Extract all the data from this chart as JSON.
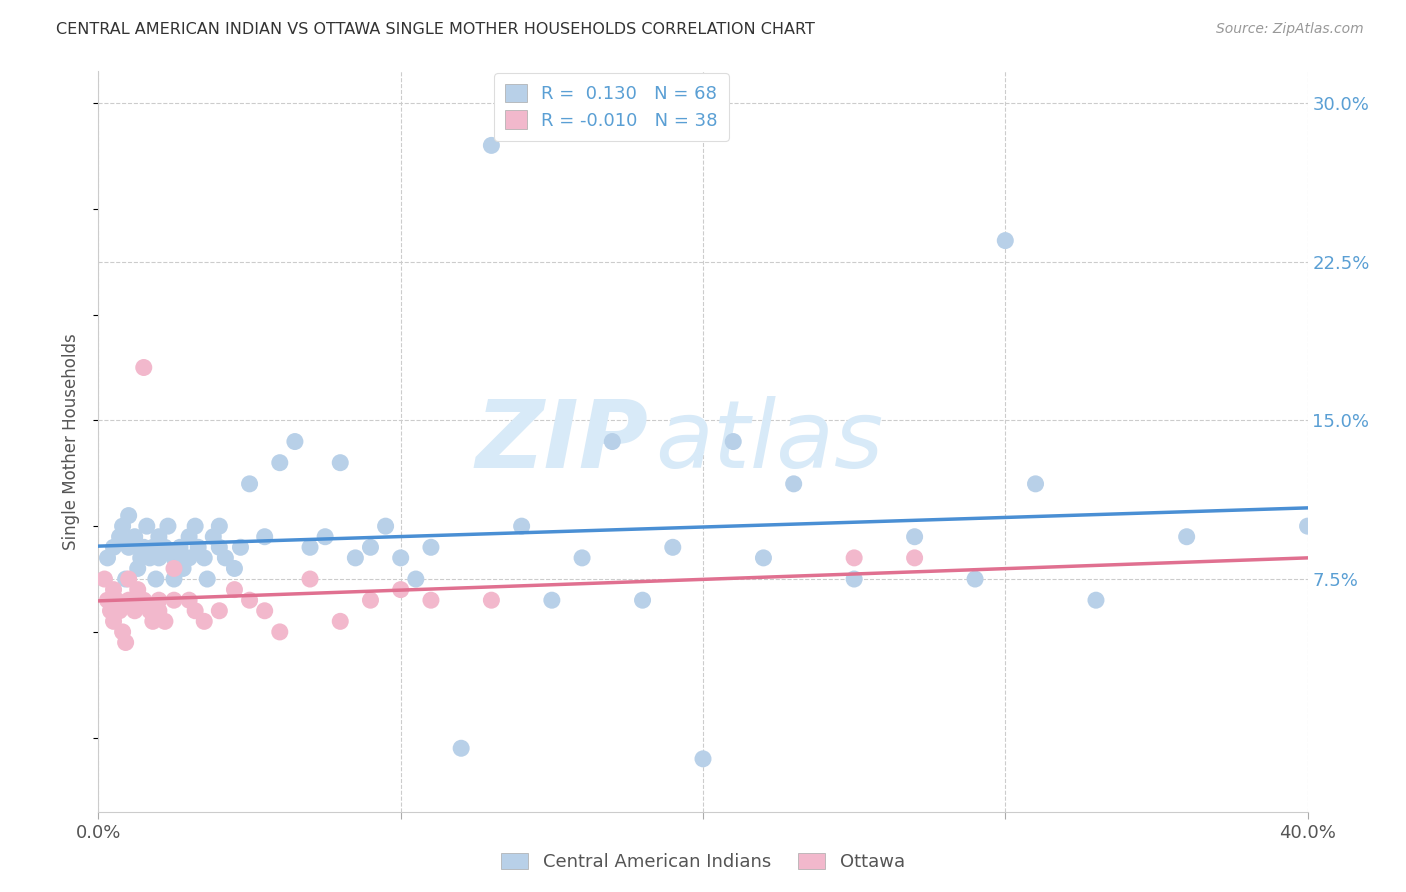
{
  "title": "CENTRAL AMERICAN INDIAN VS OTTAWA SINGLE MOTHER HOUSEHOLDS CORRELATION CHART",
  "source": "Source: ZipAtlas.com",
  "ylabel": "Single Mother Households",
  "xlim": [
    0.0,
    0.4
  ],
  "ylim": [
    -0.035,
    0.315
  ],
  "yticks": [
    0.075,
    0.15,
    0.225,
    0.3
  ],
  "ytick_labels": [
    "7.5%",
    "15.0%",
    "22.5%",
    "30.0%"
  ],
  "xticks": [
    0.0,
    0.1,
    0.2,
    0.3,
    0.4
  ],
  "xtick_labels": [
    "0.0%",
    "",
    "",
    "",
    "40.0%"
  ],
  "background_color": "#ffffff",
  "grid_color": "#cccccc",
  "watermark_zip": "ZIP",
  "watermark_atlas": "atlas",
  "blue_color": "#b8d0e8",
  "pink_color": "#f2b8cc",
  "blue_line_color": "#4a8fd4",
  "pink_line_color": "#e07090",
  "tick_label_color": "#5a9fd4",
  "blue_R": 0.13,
  "blue_N": 68,
  "pink_R": -0.01,
  "pink_N": 38,
  "legend_label_blue": "Central American Indians",
  "legend_label_pink": "Ottawa",
  "blue_scatter_x": [
    0.003,
    0.005,
    0.007,
    0.008,
    0.009,
    0.01,
    0.01,
    0.012,
    0.013,
    0.014,
    0.015,
    0.016,
    0.017,
    0.018,
    0.019,
    0.02,
    0.02,
    0.022,
    0.023,
    0.025,
    0.025,
    0.027,
    0.028,
    0.03,
    0.03,
    0.032,
    0.033,
    0.035,
    0.036,
    0.038,
    0.04,
    0.04,
    0.042,
    0.045,
    0.047,
    0.05,
    0.055,
    0.06,
    0.065,
    0.07,
    0.075,
    0.08,
    0.085,
    0.09,
    0.095,
    0.1,
    0.105,
    0.11,
    0.12,
    0.13,
    0.14,
    0.15,
    0.16,
    0.17,
    0.18,
    0.19,
    0.2,
    0.21,
    0.22,
    0.23,
    0.25,
    0.27,
    0.29,
    0.3,
    0.31,
    0.33,
    0.36,
    0.4
  ],
  "blue_scatter_y": [
    0.085,
    0.09,
    0.095,
    0.1,
    0.075,
    0.09,
    0.105,
    0.095,
    0.08,
    0.085,
    0.09,
    0.1,
    0.085,
    0.09,
    0.075,
    0.085,
    0.095,
    0.09,
    0.1,
    0.085,
    0.075,
    0.09,
    0.08,
    0.085,
    0.095,
    0.1,
    0.09,
    0.085,
    0.075,
    0.095,
    0.09,
    0.1,
    0.085,
    0.08,
    0.09,
    0.12,
    0.095,
    0.13,
    0.14,
    0.09,
    0.095,
    0.13,
    0.085,
    0.09,
    0.1,
    0.085,
    0.075,
    0.09,
    -0.005,
    0.28,
    0.1,
    0.065,
    0.085,
    0.14,
    0.065,
    0.09,
    -0.01,
    0.14,
    0.085,
    0.12,
    0.075,
    0.095,
    0.075,
    0.235,
    0.12,
    0.065,
    0.095,
    0.1
  ],
  "pink_scatter_x": [
    0.002,
    0.003,
    0.004,
    0.005,
    0.005,
    0.006,
    0.007,
    0.008,
    0.009,
    0.01,
    0.01,
    0.012,
    0.013,
    0.015,
    0.015,
    0.017,
    0.018,
    0.02,
    0.02,
    0.022,
    0.025,
    0.025,
    0.03,
    0.032,
    0.035,
    0.04,
    0.045,
    0.05,
    0.055,
    0.06,
    0.07,
    0.08,
    0.09,
    0.1,
    0.11,
    0.13,
    0.25,
    0.27
  ],
  "pink_scatter_y": [
    0.075,
    0.065,
    0.06,
    0.07,
    0.055,
    0.065,
    0.06,
    0.05,
    0.045,
    0.075,
    0.065,
    0.06,
    0.07,
    0.175,
    0.065,
    0.06,
    0.055,
    0.065,
    0.06,
    0.055,
    0.065,
    0.08,
    0.065,
    0.06,
    0.055,
    0.06,
    0.07,
    0.065,
    0.06,
    0.05,
    0.075,
    0.055,
    0.065,
    0.07,
    0.065,
    0.065,
    0.085,
    0.085
  ]
}
